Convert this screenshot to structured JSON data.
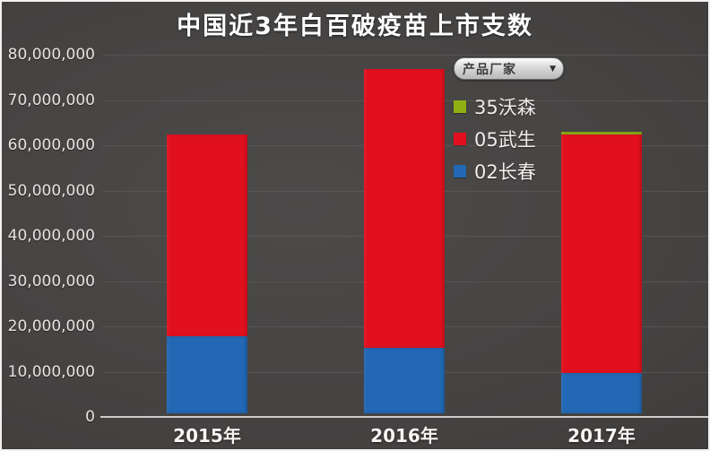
{
  "chart_data": {
    "type": "bar",
    "stacked": true,
    "title": "中国近3年白百破疫苗上市支数",
    "categories": [
      "2015年",
      "2016年",
      "2017年"
    ],
    "series": [
      {
        "name": "35沃森",
        "key": "wosen",
        "color": "#8FB012",
        "values": [
          0,
          0,
          700000
        ]
      },
      {
        "name": "05武生",
        "key": "wusheng",
        "color": "#E2101E",
        "values": [
          44500000,
          61500000,
          52500000
        ]
      },
      {
        "name": "02长春",
        "key": "changchun",
        "color": "#2268B4",
        "values": [
          17000000,
          14500000,
          9000000
        ]
      }
    ],
    "totals": [
      61500000,
      76000000,
      62200000
    ],
    "ylim": [
      0,
      80000000
    ],
    "y_tick_step": 10000000,
    "y_tick_labels": [
      "0",
      "10,000,000",
      "20,000,000",
      "30,000,000",
      "40,000,000",
      "50,000,000",
      "60,000,000",
      "70,000,000",
      "80,000,000"
    ],
    "grid": true,
    "legend": {
      "position": "inside-top-right",
      "dropdown_label": "产品厂家",
      "dropdown_arrow": "▼"
    }
  }
}
